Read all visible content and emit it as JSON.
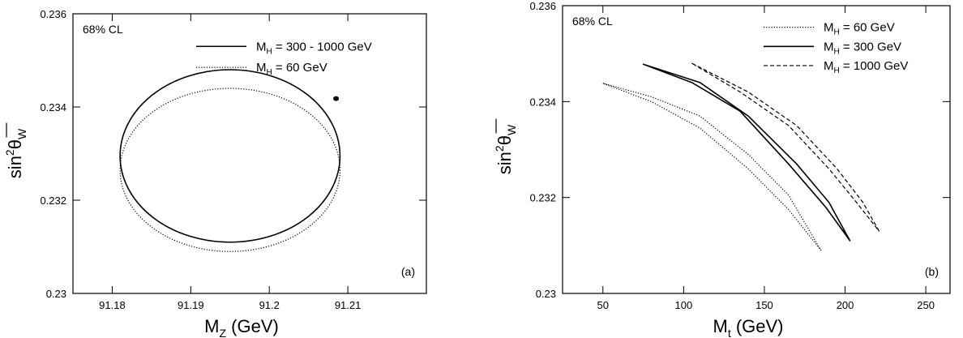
{
  "chart_data": [
    {
      "type": "line",
      "panel_label": "(a)",
      "annotation": "68% CL",
      "xlabel": {
        "main": "M",
        "sub": "Z",
        "unit": "(GeV)"
      },
      "ylabel": {
        "pre": "sin",
        "sup": "2",
        "theta": "θ",
        "sub": "W"
      },
      "xlim": [
        91.175,
        91.22
      ],
      "ylim": [
        0.23,
        0.236
      ],
      "x_ticks": [
        {
          "value": 91.18,
          "label": "91.18"
        },
        {
          "value": 91.19,
          "label": "91.19"
        },
        {
          "value": 91.2,
          "label": "91.2"
        },
        {
          "value": 91.21,
          "label": "91.21"
        }
      ],
      "y_ticks": [
        {
          "value": 0.23,
          "label": "0.23"
        },
        {
          "value": 0.232,
          "label": "0.232"
        },
        {
          "value": 0.234,
          "label": "0.234"
        },
        {
          "value": 0.236,
          "label": "0.236"
        }
      ],
      "legend_position": "top-right",
      "series": [
        {
          "name": {
            "pre": "M",
            "sub": "H",
            "post": " = 300 - 1000 GeV"
          },
          "style": "solid",
          "ellipse": {
            "cx": 91.195,
            "cy": 0.23295,
            "rx": 0.014,
            "ry": 0.00185
          },
          "legend_y": 0.2353
        },
        {
          "name": {
            "pre": "M",
            "sub": "H",
            "post": " = 60 GeV"
          },
          "style": "dotted",
          "ellipse": {
            "cx": 91.195,
            "cy": 0.23265,
            "rx": 0.014,
            "ry": 0.00175
          },
          "legend_y": 0.23485
        }
      ],
      "marker": {
        "x": 91.2085,
        "y": 0.23418
      }
    },
    {
      "type": "line",
      "panel_label": "(b)",
      "annotation": "68% CL",
      "xlabel": {
        "main": "M",
        "sub": "t",
        "unit": "(GeV)"
      },
      "ylabel": {
        "pre": "sin",
        "sup": "2",
        "theta": "θ",
        "sub": "W"
      },
      "xlim": [
        25,
        265
      ],
      "ylim": [
        0.23,
        0.236
      ],
      "x_ticks": [
        {
          "value": 50,
          "label": "50"
        },
        {
          "value": 100,
          "label": "100"
        },
        {
          "value": 150,
          "label": "150"
        },
        {
          "value": 200,
          "label": "200"
        },
        {
          "value": 250,
          "label": "250"
        }
      ],
      "y_ticks": [
        {
          "value": 0.23,
          "label": "0.23"
        },
        {
          "value": 0.232,
          "label": "0.232"
        },
        {
          "value": 0.234,
          "label": "0.234"
        },
        {
          "value": 0.236,
          "label": "0.236"
        }
      ],
      "legend_position": "top-right",
      "series": [
        {
          "name": {
            "pre": "M",
            "sub": "H",
            "post": " = 60 GeV"
          },
          "style": "dotted",
          "contour": {
            "upper": [
              [
                50,
                0.23438
              ],
              [
                80,
                0.2341
              ],
              [
                110,
                0.2337
              ],
              [
                140,
                0.2329
              ],
              [
                165,
                0.23205
              ],
              [
                185,
                0.2309
              ]
            ],
            "lower": [
              [
                185,
                0.2309
              ],
              [
                165,
                0.23175
              ],
              [
                140,
                0.2326
              ],
              [
                110,
                0.23345
              ],
              [
                80,
                0.234
              ],
              [
                50,
                0.23438
              ]
            ]
          },
          "legend_y": 0.23555
        },
        {
          "name": {
            "pre": "M",
            "sub": "H",
            "post": " = 300 GeV"
          },
          "style": "solid",
          "contour": {
            "upper": [
              [
                75,
                0.23478
              ],
              [
                110,
                0.2344
              ],
              [
                140,
                0.2337
              ],
              [
                170,
                0.2327
              ],
              [
                190,
                0.2319
              ],
              [
                203,
                0.2311
              ]
            ],
            "lower": [
              [
                203,
                0.2311
              ],
              [
                188,
                0.2318
              ],
              [
                165,
                0.2327
              ],
              [
                135,
                0.2338
              ],
              [
                105,
                0.2344
              ],
              [
                75,
                0.23478
              ]
            ]
          },
          "legend_y": 0.23515
        },
        {
          "name": {
            "pre": "M",
            "sub": "H",
            "post": " = 1000 GeV"
          },
          "style": "dashed",
          "contour": {
            "upper": [
              [
                105,
                0.2348
              ],
              [
                140,
                0.2342
              ],
              [
                170,
                0.2335
              ],
              [
                195,
                0.2326
              ],
              [
                211,
                0.2319
              ],
              [
                221,
                0.2313
              ]
            ],
            "lower": [
              [
                221,
                0.2313
              ],
              [
                207,
                0.2319
              ],
              [
                190,
                0.2326
              ],
              [
                165,
                0.2335
              ],
              [
                135,
                0.2342
              ],
              [
                105,
                0.2348
              ]
            ]
          },
          "legend_y": 0.23475
        }
      ]
    }
  ]
}
